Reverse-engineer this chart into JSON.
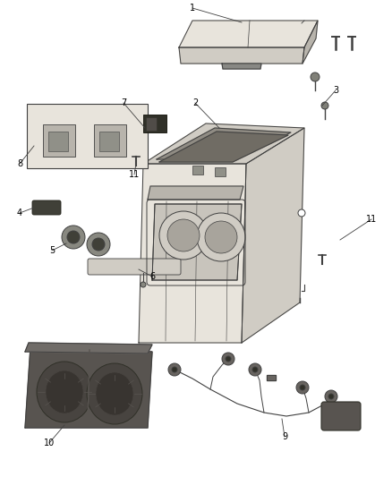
{
  "bg_color": "#ffffff",
  "figsize": [
    4.38,
    5.33
  ],
  "dpi": 100,
  "line_color": "#404040",
  "light_fill": "#e8e4dc",
  "mid_fill": "#d0ccc4",
  "dark_fill": "#b8b4ac",
  "darker_fill": "#908c84",
  "cup_fill": "#c8c4bc",
  "tray_fill": "#585450",
  "tray_dark": "#403c38"
}
